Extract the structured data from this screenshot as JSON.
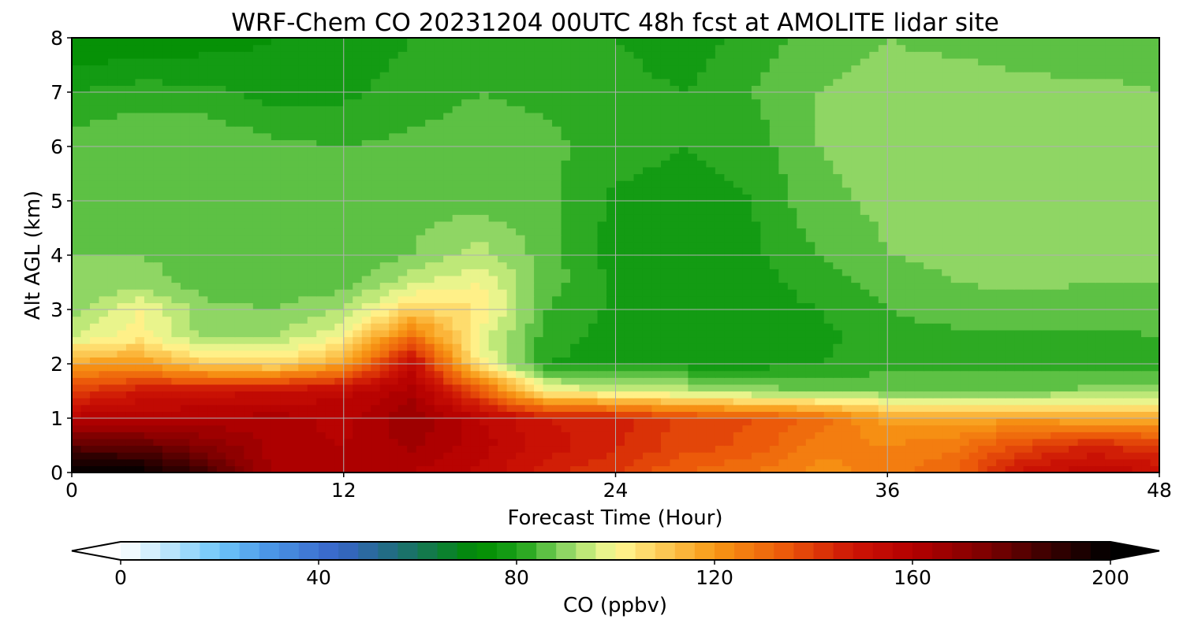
{
  "chart_data": {
    "type": "heatmap",
    "title": "WRF-Chem CO  20231204 00UTC 48h fcst at AMOLITE lidar site",
    "xlabel": "Forecast Time (Hour)",
    "ylabel": "Alt AGL (km)",
    "xlim": [
      0,
      48
    ],
    "ylim": [
      0,
      8
    ],
    "x_ticks": [
      0,
      12,
      24,
      36,
      48
    ],
    "y_ticks": [
      0,
      1,
      2,
      3,
      4,
      5,
      6,
      7,
      8
    ],
    "grid": true,
    "colorbar": {
      "label": "CO  (ppbv)",
      "range": [
        0,
        200
      ],
      "ticks": [
        0,
        40,
        80,
        120,
        160,
        200
      ],
      "extend": "both",
      "placement": "bottom",
      "level_step": 4
    },
    "x": [
      0,
      3,
      6,
      9,
      12,
      15,
      18,
      21,
      24,
      27,
      30,
      33,
      36,
      39,
      42,
      45,
      48
    ],
    "y": [
      0,
      0.5,
      1,
      1.5,
      2,
      2.5,
      3,
      3.5,
      4,
      5,
      6,
      7,
      8
    ],
    "z": [
      [
        200,
        200,
        185,
        162,
        160,
        160,
        155,
        145,
        140,
        132,
        128,
        122,
        126,
        132,
        150,
        155,
        152
      ],
      [
        182,
        180,
        172,
        162,
        160,
        165,
        158,
        150,
        145,
        138,
        135,
        126,
        124,
        127,
        138,
        145,
        140
      ],
      [
        158,
        160,
        160,
        162,
        158,
        168,
        156,
        148,
        146,
        138,
        136,
        130,
        118,
        118,
        118,
        116,
        116
      ],
      [
        140,
        148,
        150,
        152,
        155,
        162,
        135,
        100,
        97,
        94,
        90,
        88,
        88,
        88,
        88,
        89,
        90
      ],
      [
        118,
        120,
        108,
        106,
        118,
        155,
        102,
        80,
        78,
        78,
        78,
        80,
        82,
        82,
        82,
        82,
        83
      ],
      [
        96,
        102,
        90,
        92,
        100,
        130,
        98,
        82,
        78,
        78,
        78,
        79,
        82,
        83,
        83,
        83,
        84
      ],
      [
        90,
        100,
        89,
        88,
        92,
        108,
        104,
        84,
        79,
        77,
        78,
        80,
        84,
        86,
        86,
        86,
        86
      ],
      [
        88,
        90,
        86,
        85,
        86,
        95,
        100,
        86,
        79,
        76,
        78,
        82,
        86,
        88,
        89,
        88,
        88
      ],
      [
        88,
        88,
        86,
        85,
        85,
        88,
        94,
        86,
        78,
        77,
        79,
        84,
        88,
        89,
        89,
        89,
        89
      ],
      [
        88,
        87,
        87,
        86,
        87,
        87,
        86,
        85,
        79,
        78,
        80,
        87,
        89,
        89,
        89,
        89,
        89
      ],
      [
        86,
        88,
        88,
        85,
        84,
        85,
        86,
        85,
        82,
        80,
        82,
        88,
        90,
        91,
        90,
        89,
        89
      ],
      [
        80,
        82,
        81,
        78,
        79,
        82,
        84,
        83,
        82,
        80,
        84,
        88,
        90,
        92,
        90,
        89,
        88
      ],
      [
        72,
        72,
        74,
        76,
        77,
        80,
        81,
        82,
        80,
        77,
        82,
        86,
        88,
        86,
        84,
        85,
        86
      ]
    ]
  }
}
